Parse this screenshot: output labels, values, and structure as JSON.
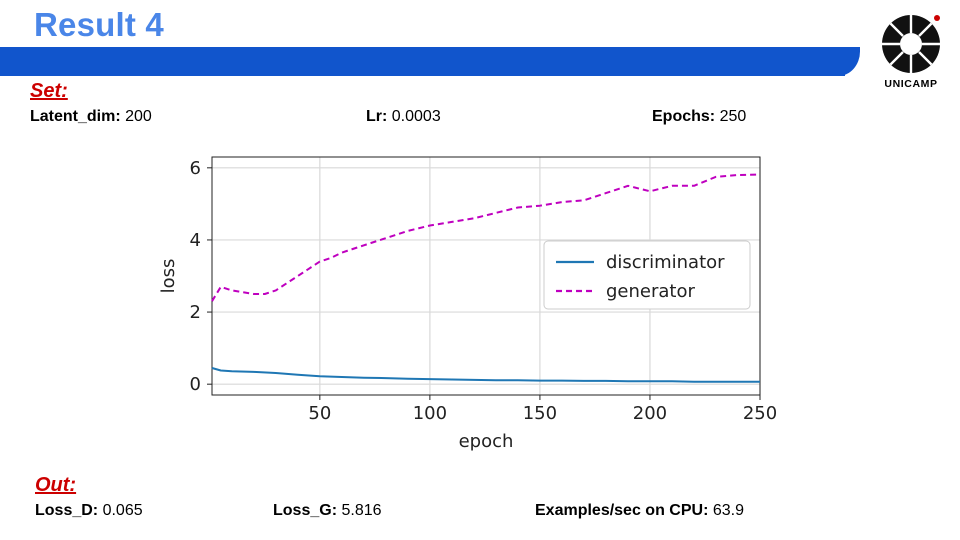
{
  "slide": {
    "title": "Result 4",
    "logo_text": "UNICAMP"
  },
  "set_section": {
    "heading": "Set:",
    "params": [
      {
        "label": "Latent_dim:",
        "value": "200"
      },
      {
        "label": "Lr:",
        "value": "0.0003"
      },
      {
        "label": "Epochs:",
        "value": "250"
      }
    ]
  },
  "out_section": {
    "heading": "Out:",
    "results": [
      {
        "label": "Loss_D:",
        "value": "0.065"
      },
      {
        "label": "Loss_G:",
        "value": "5.816"
      },
      {
        "label": "Examples/sec on CPU:",
        "value": "63.9"
      }
    ]
  },
  "colors": {
    "title": "#4a86e8",
    "band": "#1155cc",
    "section_heading": "#cc0000",
    "discriminator": "#1f77b4",
    "generator": "#bf00bf"
  },
  "chart_data": {
    "type": "line",
    "xlabel": "epoch",
    "ylabel": "loss",
    "xlim": [
      1,
      250
    ],
    "ylim": [
      -0.3,
      6.3
    ],
    "xticks": [
      50,
      100,
      150,
      200,
      250
    ],
    "yticks": [
      0,
      2,
      4,
      6
    ],
    "grid": true,
    "legend_position": "center-right",
    "series": [
      {
        "name": "discriminator",
        "line_style": "solid",
        "x": [
          1,
          5,
          10,
          20,
          30,
          40,
          50,
          60,
          70,
          80,
          90,
          100,
          110,
          120,
          130,
          140,
          150,
          160,
          170,
          180,
          190,
          200,
          210,
          220,
          230,
          240,
          250
        ],
        "y": [
          0.45,
          0.38,
          0.36,
          0.34,
          0.31,
          0.26,
          0.22,
          0.2,
          0.18,
          0.17,
          0.15,
          0.14,
          0.13,
          0.12,
          0.11,
          0.11,
          0.1,
          0.1,
          0.09,
          0.09,
          0.08,
          0.08,
          0.08,
          0.07,
          0.07,
          0.07,
          0.065
        ]
      },
      {
        "name": "generator",
        "line_style": "dashed",
        "x": [
          1,
          5,
          10,
          15,
          20,
          25,
          30,
          35,
          40,
          45,
          50,
          55,
          60,
          70,
          80,
          90,
          100,
          110,
          120,
          130,
          140,
          150,
          160,
          170,
          180,
          190,
          200,
          210,
          220,
          230,
          240,
          250
        ],
        "y": [
          2.3,
          2.7,
          2.6,
          2.55,
          2.5,
          2.5,
          2.6,
          2.8,
          3.0,
          3.2,
          3.4,
          3.5,
          3.65,
          3.85,
          4.05,
          4.25,
          4.4,
          4.5,
          4.6,
          4.75,
          4.9,
          4.95,
          5.05,
          5.1,
          5.3,
          5.5,
          5.35,
          5.5,
          5.5,
          5.75,
          5.8,
          5.816
        ]
      }
    ]
  }
}
